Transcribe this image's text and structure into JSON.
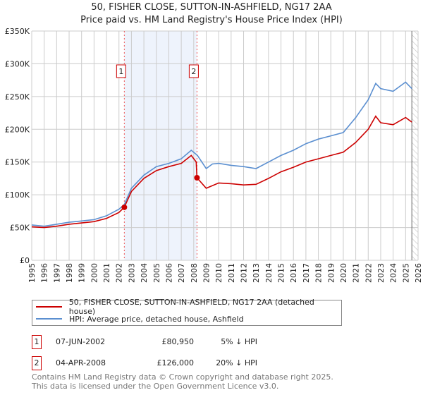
{
  "title": "50, FISHER CLOSE, SUTTON-IN-ASHFIELD, NG17 2AA",
  "subtitle": "Price paid vs. HM Land Registry's House Price Index (HPI)",
  "legend": [
    {
      "label": "50, FISHER CLOSE, SUTTON-IN-ASHFIELD, NG17 2AA (detached house)",
      "color": "#cc0000"
    },
    {
      "label": "HPI: Average price, detached house, Ashfield",
      "color": "#5b8fd0"
    }
  ],
  "sales": [
    {
      "num": "1",
      "date": "07-JUN-2002",
      "price": "£80,950",
      "hpi": "5% ↓ HPI"
    },
    {
      "num": "2",
      "date": "04-APR-2008",
      "price": "£126,000",
      "hpi": "20% ↓ HPI"
    }
  ],
  "footer": [
    "Contains HM Land Registry data © Crown copyright and database right 2025.",
    "This data is licensed under the Open Government Licence v3.0."
  ],
  "chart_data": {
    "type": "line",
    "title": "50, FISHER CLOSE, SUTTON-IN-ASHFIELD, NG17 2AA",
    "xlim": [
      1995,
      2026
    ],
    "ylim": [
      0,
      350000
    ],
    "yticks": [
      {
        "v": 0,
        "label": "£0"
      },
      {
        "v": 50000,
        "label": "£50K"
      },
      {
        "v": 100000,
        "label": "£100K"
      },
      {
        "v": 150000,
        "label": "£150K"
      },
      {
        "v": 200000,
        "label": "£200K"
      },
      {
        "v": 250000,
        "label": "£250K"
      },
      {
        "v": 300000,
        "label": "£300K"
      },
      {
        "v": 350000,
        "label": "£350K"
      }
    ],
    "xticks": [
      "1995",
      "1996",
      "1997",
      "1998",
      "1999",
      "2000",
      "2001",
      "2002",
      "2003",
      "2004",
      "2005",
      "2006",
      "2007",
      "2008",
      "2009",
      "2010",
      "2011",
      "2012",
      "2013",
      "2014",
      "2015",
      "2016",
      "2017",
      "2018",
      "2019",
      "2020",
      "2021",
      "2022",
      "2023",
      "2024",
      "2025",
      "2026"
    ],
    "shaded_range": [
      2002.43,
      2008.26
    ],
    "forecast_from": 2025.5,
    "markers": [
      {
        "label": "1",
        "x": 2002.43,
        "y": 80950
      },
      {
        "label": "2",
        "x": 2008.26,
        "y": 126000
      }
    ],
    "series": [
      {
        "name": "HPI",
        "color": "#5b8fd0",
        "x": [
          1995,
          1996,
          1997,
          1998,
          1999,
          2000,
          2001,
          2002,
          2002.43,
          2003,
          2004,
          2005,
          2006,
          2007,
          2007.8,
          2008.3,
          2009,
          2009.5,
          2010,
          2011,
          2012,
          2013,
          2014,
          2015,
          2016,
          2017,
          2018,
          2019,
          2020,
          2021,
          2022,
          2022.6,
          2023,
          2024,
          2025,
          2025.5
        ],
        "y": [
          54000,
          52000,
          55000,
          58000,
          60000,
          62000,
          68000,
          78000,
          85000,
          110000,
          130000,
          143000,
          148000,
          155000,
          168000,
          160000,
          140000,
          147000,
          148000,
          145000,
          143000,
          140000,
          150000,
          160000,
          168000,
          178000,
          185000,
          190000,
          195000,
          218000,
          245000,
          270000,
          262000,
          258000,
          272000,
          262000
        ]
      },
      {
        "name": "Price paid",
        "color": "#cc0000",
        "x": [
          1995,
          1996,
          1997,
          1998,
          1999,
          2000,
          2001,
          2002,
          2002.43,
          2003,
          2004,
          2005,
          2006,
          2007,
          2007.8,
          2008.2,
          2008.26,
          2009,
          2010,
          2011,
          2012,
          2013,
          2014,
          2015,
          2016,
          2017,
          2018,
          2019,
          2020,
          2021,
          2022,
          2022.6,
          2023,
          2024,
          2025,
          2025.5
        ],
        "y": [
          51000,
          50000,
          52000,
          55000,
          57000,
          59000,
          64000,
          73000,
          80950,
          105000,
          125000,
          137000,
          143000,
          148000,
          160000,
          150000,
          126000,
          110000,
          118000,
          117000,
          115000,
          116000,
          125000,
          135000,
          142000,
          150000,
          155000,
          160000,
          165000,
          180000,
          200000,
          220000,
          210000,
          207000,
          218000,
          211000
        ]
      }
    ]
  }
}
